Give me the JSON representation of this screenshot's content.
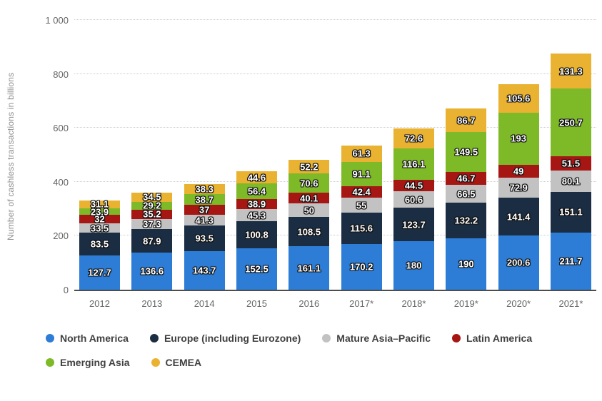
{
  "chart_data": {
    "type": "bar",
    "stacked": true,
    "ylabel": "Number of cashless transactions in billions",
    "ylim": [
      0,
      1000
    ],
    "ytick_step": 200,
    "yticks": [
      "0",
      "200",
      "400",
      "600",
      "800",
      "1 000"
    ],
    "categories": [
      "2012",
      "2013",
      "2014",
      "2015",
      "2016",
      "2017*",
      "2018*",
      "2019*",
      "2020*",
      "2021*"
    ],
    "series": [
      {
        "name": "North America",
        "color": "#2d7dd6",
        "values": [
          127.7,
          136.6,
          143.7,
          152.5,
          161.1,
          170.2,
          180,
          190,
          200.6,
          211.7
        ]
      },
      {
        "name": "Europe (including Eurozone)",
        "color": "#1b2d42",
        "values": [
          83.5,
          87.9,
          93.5,
          100.8,
          108.5,
          115.6,
          123.7,
          132.2,
          141.4,
          151.1
        ]
      },
      {
        "name": "Mature Asia–Pacific",
        "color": "#c2c2c2",
        "values": [
          33.5,
          37.3,
          41.3,
          45.3,
          50,
          55,
          60.6,
          66.5,
          72.9,
          80.1
        ]
      },
      {
        "name": "Latin America",
        "color": "#a61613",
        "values": [
          32,
          35.2,
          37,
          38.9,
          40.1,
          42.4,
          44.5,
          46.7,
          49,
          51.5
        ]
      },
      {
        "name": "Emerging Asia",
        "color": "#7eba28",
        "values": [
          23.9,
          29.2,
          38.7,
          56.4,
          70.6,
          91.1,
          116.1,
          149.5,
          193,
          250.7
        ]
      },
      {
        "name": "CEMEA",
        "color": "#eab231",
        "values": [
          31.1,
          34.5,
          38.3,
          44.6,
          52.2,
          61.3,
          72.6,
          86.7,
          105.6,
          131.3
        ]
      }
    ],
    "grid": "horizontal-dotted",
    "legend_position": "bottom",
    "axis_color": "#4d4d4d",
    "grid_color": "#cccccc",
    "tick_label_color": "#666666",
    "legend_text_color": "#404040"
  }
}
